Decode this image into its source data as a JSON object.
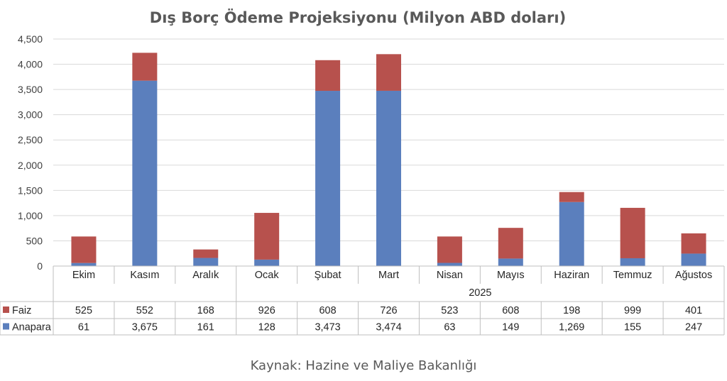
{
  "chart_data": {
    "type": "bar",
    "stacked": true,
    "title": "Dış Borç Ödeme Projeksiyonu (Milyon ABD doları)",
    "categories": [
      "Ekim",
      "Kasım",
      "Aralık",
      "Ocak",
      "Şubat",
      "Mart",
      "Nisan",
      "Mayıs",
      "Haziran",
      "Temmuz",
      "Ağustos"
    ],
    "year_group": {
      "label": "2025",
      "from_index": 3
    },
    "series": [
      {
        "name": "Anapara",
        "color": "#5b7fbd",
        "values": [
          61,
          3675,
          161,
          128,
          3473,
          3474,
          63,
          149,
          1269,
          155,
          247
        ],
        "display": [
          "61",
          "3,675",
          "161",
          "128",
          "3,473",
          "3,474",
          "63",
          "149",
          "1,269",
          "155",
          "247"
        ]
      },
      {
        "name": "Faiz",
        "color": "#b7514d",
        "values": [
          525,
          552,
          168,
          926,
          608,
          726,
          523,
          608,
          198,
          999,
          401
        ],
        "display": [
          "525",
          "552",
          "168",
          "926",
          "608",
          "726",
          "523",
          "608",
          "198",
          "999",
          "401"
        ]
      }
    ],
    "ylim": [
      0,
      4500
    ],
    "y_ticks": [
      0,
      500,
      1000,
      1500,
      2000,
      2500,
      3000,
      3500,
      4000,
      4500
    ],
    "y_tick_labels": [
      "0",
      "500",
      "1,000",
      "1,500",
      "2,000",
      "2,500",
      "3,000",
      "3,500",
      "4,000",
      "4,500"
    ],
    "grid": true,
    "legend": "data-table",
    "data_table_order": [
      "Faiz",
      "Anapara"
    ]
  },
  "source": "Kaynak: Hazine ve Maliye Bakanlığı"
}
